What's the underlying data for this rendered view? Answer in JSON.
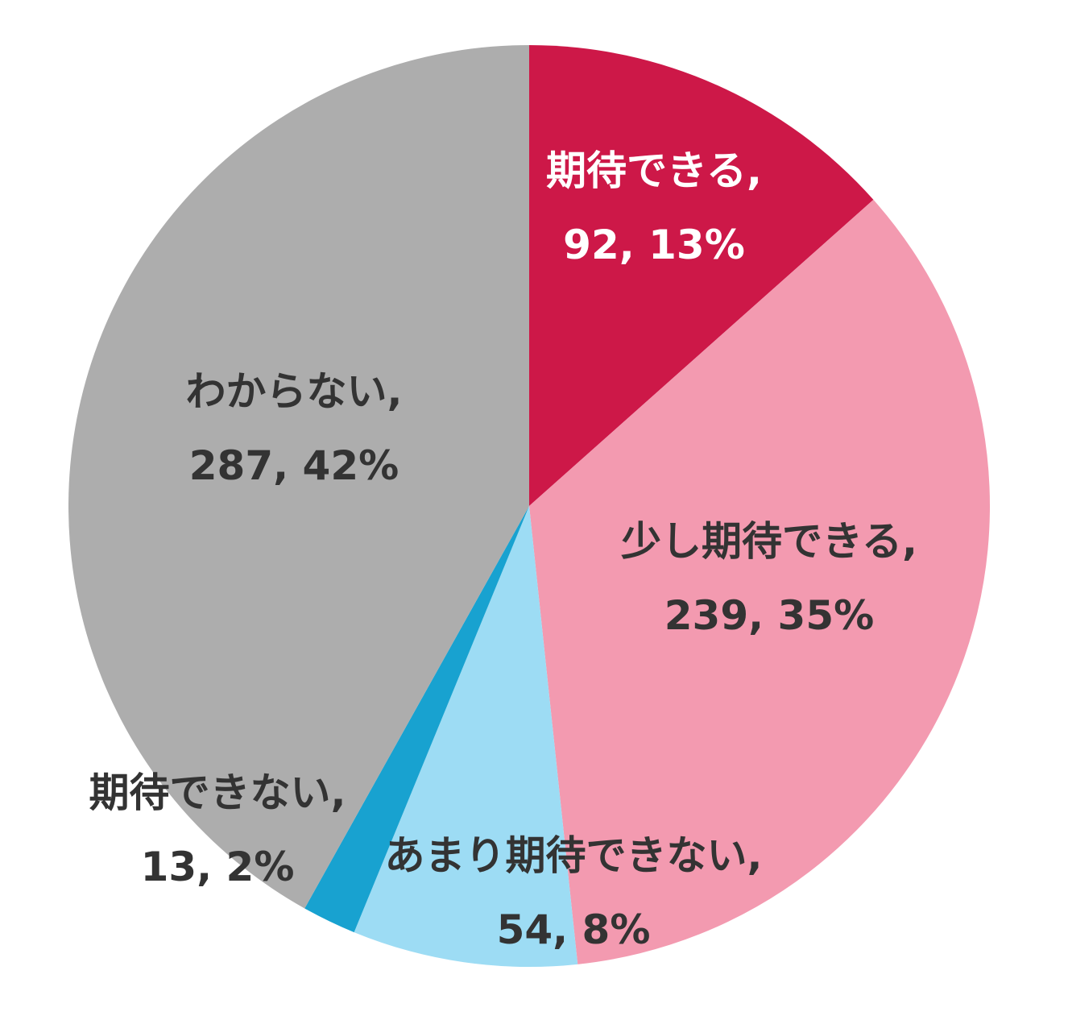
{
  "chart_data": {
    "type": "pie",
    "title": "",
    "start_angle_deg": 0,
    "direction": "clockwise",
    "slices": [
      {
        "label": "期待できる",
        "value": 92,
        "percent": "13%",
        "color": "#CD1848",
        "text_color": "#FFFFFF",
        "line1": "期待できる,",
        "line2": "92, 13%"
      },
      {
        "label": "少し期待できる",
        "value": 239,
        "percent": "35%",
        "color": "#F39AB0",
        "text_color": "#333333",
        "line1": "少し期待できる,",
        "line2": "239, 35%"
      },
      {
        "label": "あまり期待できない",
        "value": 54,
        "percent": "8%",
        "color": "#9DDCF4",
        "text_color": "#333333",
        "line1": "あまり期待できない,",
        "line2": "54, 8%"
      },
      {
        "label": "期待できない",
        "value": 13,
        "percent": "2%",
        "color": "#18A2D0",
        "text_color": "#333333",
        "line1": "期待できない,",
        "line2": "13, 2%"
      },
      {
        "label": "わからない",
        "value": 287,
        "percent": "42%",
        "color": "#ADADAD",
        "text_color": "#333333",
        "line1": "わからない,",
        "line2": "287, 42%"
      }
    ],
    "legend": "none",
    "data_labels": "category, value, percentage"
  }
}
